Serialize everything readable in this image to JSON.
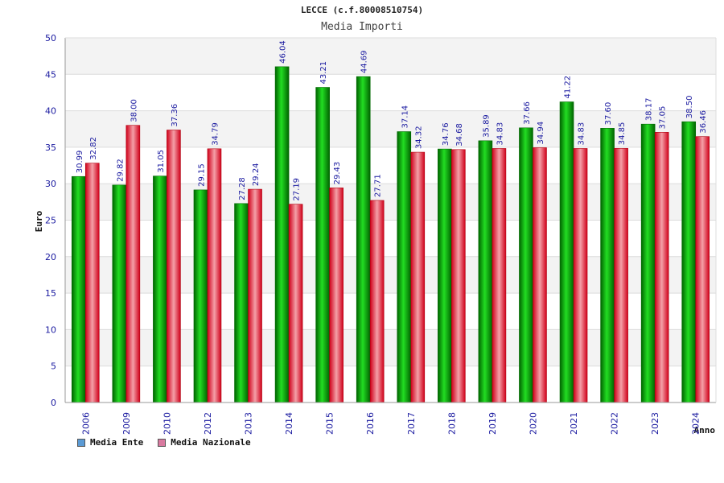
{
  "title": "LECCE (c.f.80008510754)",
  "subtitle": "Media Importi",
  "chart_data": {
    "type": "bar",
    "title": "Media Importi",
    "xlabel": "Anno",
    "ylabel": "Euro",
    "ylim": [
      0,
      50
    ],
    "yticks": [
      0,
      5,
      10,
      15,
      20,
      25,
      30,
      35,
      40,
      45,
      50
    ],
    "grid": true,
    "legend_position": "bottom-left",
    "categories": [
      "2006",
      "2009",
      "2010",
      "2012",
      "2013",
      "2014",
      "2015",
      "2016",
      "2017",
      "2018",
      "2019",
      "2020",
      "2021",
      "2022",
      "2023",
      "2024"
    ],
    "series": [
      {
        "name": "Media Ente",
        "legend_color": "#5b9bd5",
        "bar_color": "#0a9a0a",
        "values": [
          30.99,
          29.82,
          31.05,
          29.15,
          27.28,
          46.04,
          43.21,
          44.69,
          37.14,
          34.76,
          35.89,
          37.66,
          41.22,
          37.6,
          38.17,
          38.5
        ],
        "labels": [
          "30.99",
          "29.82",
          "31.05",
          "29.15",
          "27.28",
          "46.04",
          "43.21",
          "44.69",
          "37.14",
          "34.76",
          "35.89",
          "37.66",
          "41.22",
          "37.60",
          "38.17",
          "38.50"
        ]
      },
      {
        "name": "Media Nazionale",
        "legend_color": "#d97aa0",
        "bar_color": "#e0303a",
        "values": [
          32.82,
          38.0,
          37.36,
          34.79,
          29.24,
          27.19,
          29.43,
          27.71,
          34.32,
          34.68,
          34.83,
          34.94,
          34.83,
          34.85,
          37.05,
          36.46
        ],
        "labels": [
          "32.82",
          "38.00",
          "37.36",
          "34.79",
          "29.24",
          "27.19",
          "29.43",
          "27.71",
          "34.32",
          "34.68",
          "34.83",
          "34.94",
          "34.83",
          "34.85",
          "37.05",
          "36.46"
        ]
      }
    ]
  }
}
